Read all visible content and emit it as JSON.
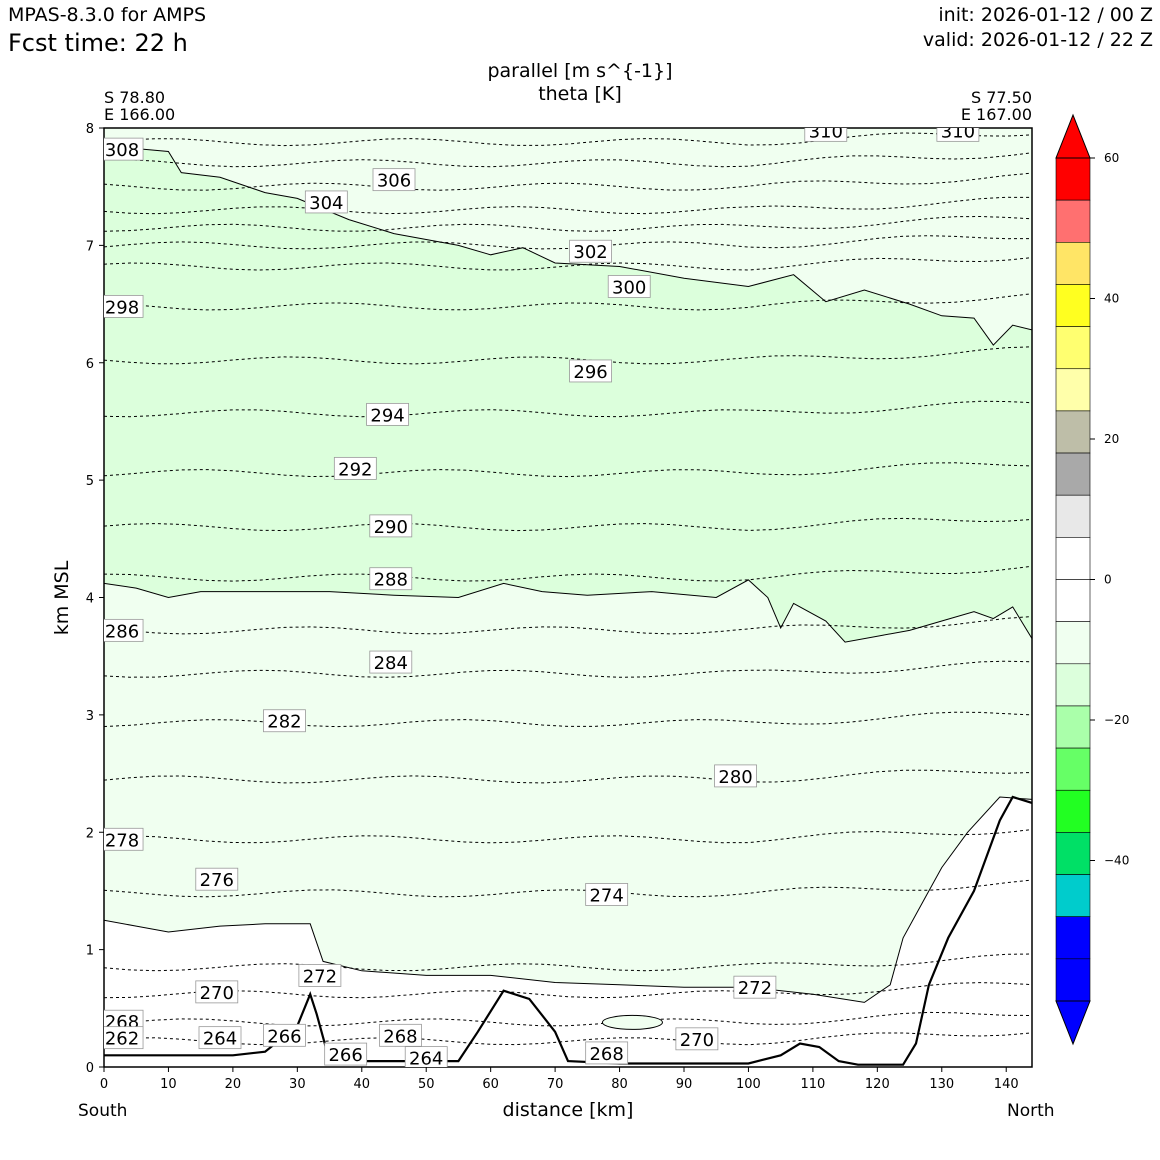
{
  "header": {
    "model": "MPAS-8.3.0 for AMPS",
    "fcst_label": "Fcst time:   22 h",
    "init": "init: 2026-01-12 / 00 Z",
    "valid": "valid: 2026-01-12 / 22 Z"
  },
  "chart_data": {
    "type": "contour",
    "title_lines": [
      "parallel [m s^{-1}]",
      "theta [K]"
    ],
    "xlabel": "distance [km]",
    "ylabel": "km MSL",
    "xlim": [
      0,
      144
    ],
    "ylim": [
      0,
      8
    ],
    "x_ticks": [
      0,
      10,
      20,
      30,
      40,
      50,
      60,
      70,
      80,
      90,
      100,
      110,
      120,
      130,
      140
    ],
    "y_ticks": [
      0,
      1,
      2,
      3,
      4,
      5,
      6,
      7,
      8
    ],
    "start_point": {
      "lat": "S 78.80",
      "lon": "E 166.00",
      "end_label": "South"
    },
    "end_point": {
      "lat": "S 77.50",
      "lon": "E 167.00",
      "end_label": "North"
    },
    "colorbar": {
      "range": [
        -60,
        60
      ],
      "tick_values": [
        60,
        40,
        20,
        0,
        -20,
        -40
      ],
      "tick_labels": [
        "60",
        "40",
        "20",
        "0",
        "−20",
        "−40"
      ],
      "bands_top_to_bottom": [
        "#ff0000",
        "#ff7070",
        "#ffe566",
        "#ffff20",
        "#ffff70",
        "#ffffaa",
        "#bebea8",
        "#a9a9a9",
        "#e8e8e8",
        "#ffffff",
        "#ffffff",
        "#f0fff0",
        "#dcffdc",
        "#aaffaa",
        "#66ff66",
        "#22ff22",
        "#00e066",
        "#00cccc",
        "#0000ff",
        "#0000ff"
      ],
      "max_extend_color": "#ff0000",
      "min_extend_color": "#0000ff"
    },
    "filled_regions": {
      "upper_layer_color": "#dcffdc",
      "lower_layer_color": "#f0fff0",
      "terrain_color": "#ffffff"
    },
    "theta_contour_labels": [
      {
        "value": "308",
        "x": 2.8,
        "y": 7.82
      },
      {
        "value": "310",
        "x": 112,
        "y": 7.98
      },
      {
        "value": "310",
        "x": 132.5,
        "y": 7.98
      },
      {
        "value": "306",
        "x": 45,
        "y": 7.56
      },
      {
        "value": "304",
        "x": 34.5,
        "y": 7.37
      },
      {
        "value": "302",
        "x": 75.5,
        "y": 6.95
      },
      {
        "value": "300",
        "x": 81.5,
        "y": 6.65
      },
      {
        "value": "298",
        "x": 2.8,
        "y": 6.48
      },
      {
        "value": "296",
        "x": 75.5,
        "y": 5.93
      },
      {
        "value": "294",
        "x": 44,
        "y": 5.56
      },
      {
        "value": "292",
        "x": 39,
        "y": 5.1
      },
      {
        "value": "290",
        "x": 44.5,
        "y": 4.61
      },
      {
        "value": "288",
        "x": 44.5,
        "y": 4.16
      },
      {
        "value": "286",
        "x": 2.8,
        "y": 3.72
      },
      {
        "value": "284",
        "x": 44.5,
        "y": 3.45
      },
      {
        "value": "282",
        "x": 28,
        "y": 2.95
      },
      {
        "value": "280",
        "x": 98,
        "y": 2.48
      },
      {
        "value": "278",
        "x": 2.8,
        "y": 1.94
      },
      {
        "value": "276",
        "x": 17.5,
        "y": 1.6
      },
      {
        "value": "274",
        "x": 78,
        "y": 1.47
      },
      {
        "value": "272",
        "x": 33.5,
        "y": 0.78
      },
      {
        "value": "272",
        "x": 101,
        "y": 0.68
      },
      {
        "value": "270",
        "x": 17.5,
        "y": 0.64
      },
      {
        "value": "270",
        "x": 92,
        "y": 0.24
      },
      {
        "value": "268",
        "x": 2.8,
        "y": 0.39
      },
      {
        "value": "268",
        "x": 46,
        "y": 0.27
      },
      {
        "value": "268",
        "x": 78,
        "y": 0.12
      },
      {
        "value": "266",
        "x": 28,
        "y": 0.27
      },
      {
        "value": "266",
        "x": 37.5,
        "y": 0.11
      },
      {
        "value": "264",
        "x": 18,
        "y": 0.25
      },
      {
        "value": "264",
        "x": 50,
        "y": 0.08
      },
      {
        "value": "262",
        "x": 2.8,
        "y": 0.25
      }
    ]
  }
}
